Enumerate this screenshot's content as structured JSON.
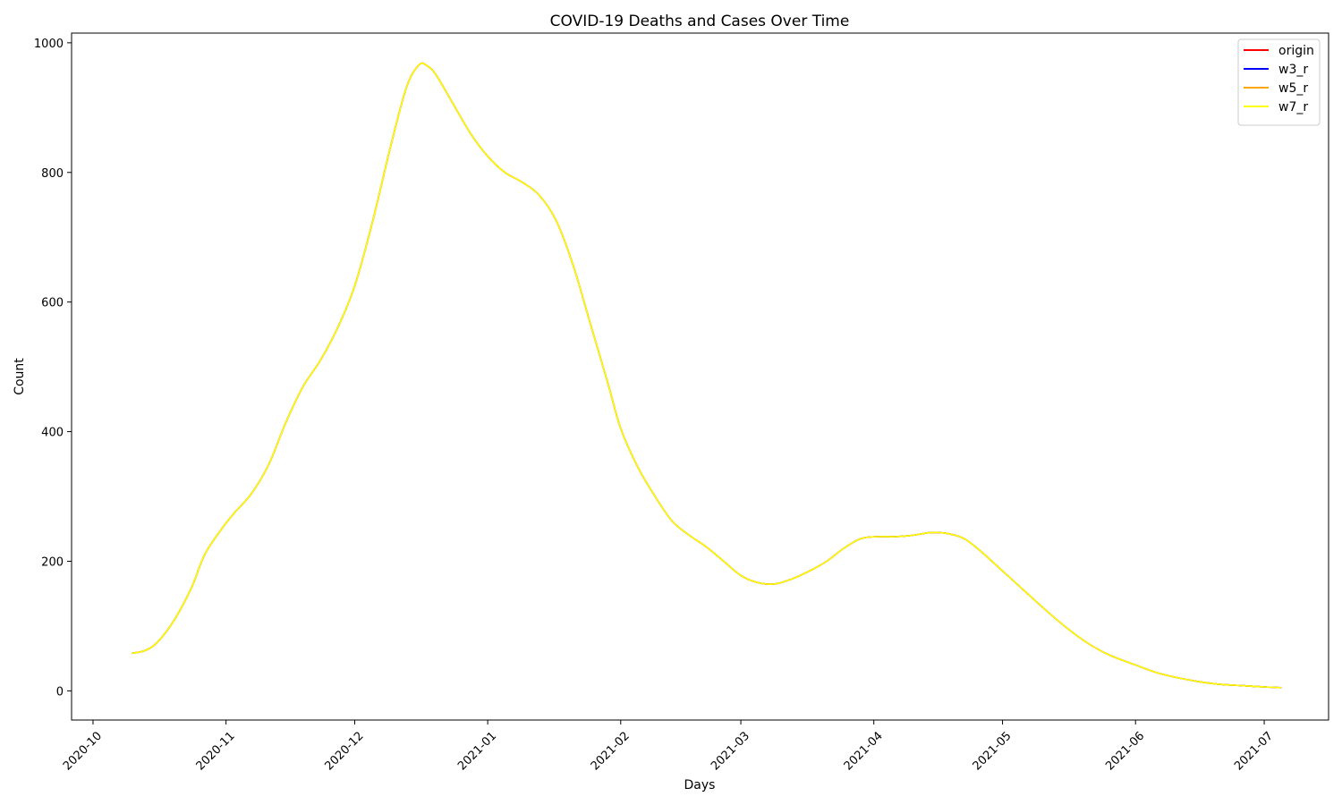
{
  "chart_data": {
    "type": "line",
    "title": "COVID-19 Deaths and Cases Over Time",
    "xlabel": "Days",
    "ylabel": "Count",
    "xlim": [
      "2020-09-26",
      "2021-07-16"
    ],
    "ylim": [
      -45,
      1015
    ],
    "yticks": [
      0,
      200,
      400,
      600,
      800,
      1000
    ],
    "xticks": [
      "2020-10-01",
      "2020-11-01",
      "2020-12-01",
      "2021-01-01",
      "2021-02-01",
      "2021-03-01",
      "2021-04-01",
      "2021-05-01",
      "2021-06-01",
      "2021-07-01"
    ],
    "xtick_labels": [
      "2020-10",
      "2020-11",
      "2020-12",
      "2021-01",
      "2021-02",
      "2021-03",
      "2021-04",
      "2021-05",
      "2021-06",
      "2021-07"
    ],
    "grid": false,
    "legend_position": "top-right",
    "x": [
      "2020-10-10",
      "2020-10-13",
      "2020-10-16",
      "2020-10-20",
      "2020-10-24",
      "2020-10-27",
      "2020-10-31",
      "2020-11-03",
      "2020-11-07",
      "2020-11-11",
      "2020-11-15",
      "2020-11-19",
      "2020-11-23",
      "2020-11-27",
      "2020-12-01",
      "2020-12-05",
      "2020-12-09",
      "2020-12-13",
      "2020-12-16",
      "2020-12-18",
      "2020-12-20",
      "2020-12-24",
      "2020-12-28",
      "2021-01-01",
      "2021-01-05",
      "2021-01-09",
      "2021-01-13",
      "2021-01-17",
      "2021-01-21",
      "2021-01-25",
      "2021-01-29",
      "2021-02-01",
      "2021-02-05",
      "2021-02-09",
      "2021-02-13",
      "2021-02-17",
      "2021-02-21",
      "2021-02-25",
      "2021-03-01",
      "2021-03-05",
      "2021-03-09",
      "2021-03-13",
      "2021-03-17",
      "2021-03-21",
      "2021-03-25",
      "2021-03-29",
      "2021-04-02",
      "2021-04-06",
      "2021-04-10",
      "2021-04-14",
      "2021-04-18",
      "2021-04-22",
      "2021-04-26",
      "2021-05-01",
      "2021-05-06",
      "2021-05-11",
      "2021-05-16",
      "2021-05-21",
      "2021-05-26",
      "2021-06-01",
      "2021-06-06",
      "2021-06-11",
      "2021-06-16",
      "2021-06-21",
      "2021-06-26",
      "2021-07-01",
      "2021-07-05"
    ],
    "series": [
      {
        "name": "origin",
        "color": "#ff0000",
        "values": [
          58,
          62,
          75,
          110,
          160,
          210,
          250,
          275,
          305,
          350,
          415,
          470,
          510,
          560,
          625,
          720,
          830,
          930,
          966,
          964,
          950,
          905,
          860,
          825,
          800,
          785,
          765,
          725,
          655,
          565,
          475,
          405,
          345,
          300,
          262,
          240,
          222,
          200,
          178,
          167,
          165,
          173,
          185,
          200,
          220,
          235,
          238,
          238,
          240,
          244,
          243,
          235,
          215,
          185,
          155,
          125,
          97,
          73,
          55,
          40,
          28,
          20,
          14,
          10,
          8,
          6,
          5
        ],
        "offsets": [
          0,
          -1,
          0
        ]
      },
      {
        "name": "w3_r",
        "color": "#0000ff",
        "values": [
          58,
          62,
          75,
          110,
          160,
          210,
          250,
          275,
          305,
          350,
          415,
          470,
          510,
          560,
          625,
          720,
          830,
          930,
          966,
          964,
          950,
          905,
          860,
          825,
          800,
          785,
          765,
          725,
          655,
          565,
          475,
          405,
          345,
          300,
          262,
          240,
          222,
          200,
          178,
          167,
          165,
          173,
          185,
          200,
          220,
          235,
          238,
          238,
          240,
          244,
          243,
          235,
          215,
          185,
          155,
          125,
          97,
          73,
          55,
          40,
          28,
          20,
          14,
          10,
          8,
          6,
          5
        ]
      },
      {
        "name": "w5_r",
        "color": "#ffa500",
        "values": [
          58,
          62,
          75,
          110,
          160,
          210,
          250,
          275,
          305,
          350,
          415,
          470,
          510,
          560,
          625,
          720,
          830,
          930,
          966,
          964,
          950,
          905,
          860,
          825,
          800,
          785,
          765,
          725,
          655,
          565,
          475,
          405,
          345,
          300,
          262,
          240,
          222,
          200,
          178,
          167,
          165,
          173,
          185,
          200,
          220,
          235,
          238,
          238,
          240,
          244,
          243,
          235,
          215,
          185,
          155,
          125,
          97,
          73,
          55,
          40,
          28,
          20,
          14,
          10,
          8,
          6,
          5
        ]
      },
      {
        "name": "w7_r",
        "color": "#ffff00",
        "values": [
          58,
          62,
          75,
          110,
          160,
          210,
          250,
          275,
          305,
          350,
          415,
          470,
          510,
          560,
          625,
          720,
          830,
          930,
          966,
          964,
          950,
          905,
          860,
          825,
          800,
          785,
          765,
          725,
          655,
          565,
          475,
          405,
          345,
          300,
          262,
          240,
          222,
          200,
          178,
          167,
          165,
          173,
          185,
          200,
          220,
          235,
          238,
          238,
          240,
          244,
          243,
          235,
          215,
          185,
          155,
          125,
          97,
          73,
          55,
          40,
          28,
          20,
          14,
          10,
          8,
          6,
          5
        ]
      }
    ]
  }
}
